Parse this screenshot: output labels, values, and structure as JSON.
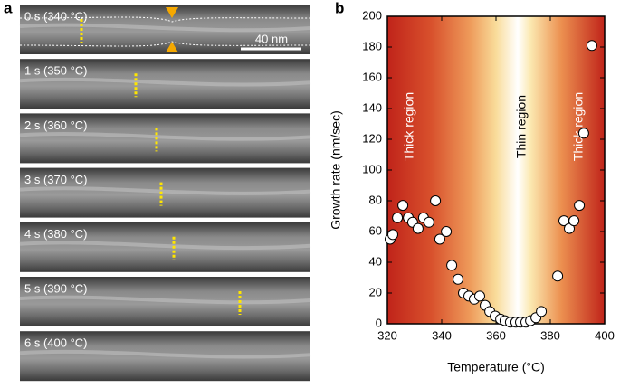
{
  "panel_a": {
    "label": "a",
    "frames": [
      "0 s (340 °C)",
      "1 s (350 °C)",
      "2 s (360 °C)",
      "3 s (370 °C)",
      "4 s (380 °C)",
      "5 s (390 °C)",
      "6 s (400 °C)"
    ],
    "scale_bar": "40 nm"
  },
  "chart_data": {
    "type": "scatter",
    "panel_label": "b",
    "x_label": "Temperature (°C)",
    "y_label": "Growth rate (nm/sec)",
    "x": [
      321,
      322,
      323.7,
      325.7,
      327.7,
      329.3,
      331.3,
      333.3,
      335.3,
      337.7,
      339.3,
      341.7,
      343.7,
      346,
      348,
      350,
      352,
      354,
      356,
      357.7,
      359.7,
      361.7,
      363.3,
      365.3,
      367.3,
      369,
      371,
      372.7,
      374.7,
      376.7,
      382.7,
      385,
      387,
      388.7,
      390.7,
      392.3,
      395.3
    ],
    "values": [
      55,
      58,
      69,
      77,
      69,
      66,
      62,
      69,
      66,
      80,
      55,
      60,
      38,
      29,
      20,
      18,
      16,
      18,
      12,
      8,
      5,
      3,
      2,
      1,
      1,
      1,
      1,
      2,
      4,
      8,
      31,
      67,
      62,
      67,
      77,
      124,
      181
    ],
    "color": "#ffffff",
    "xlim": [
      320,
      400
    ],
    "xticks": [
      320,
      340,
      360,
      380,
      400
    ],
    "ylim": [
      0,
      200
    ],
    "yticks": [
      0,
      20,
      40,
      60,
      80,
      100,
      120,
      140,
      160,
      180,
      200
    ],
    "annotations": [
      "Thick region",
      "Thin region",
      "Thick region"
    ]
  }
}
